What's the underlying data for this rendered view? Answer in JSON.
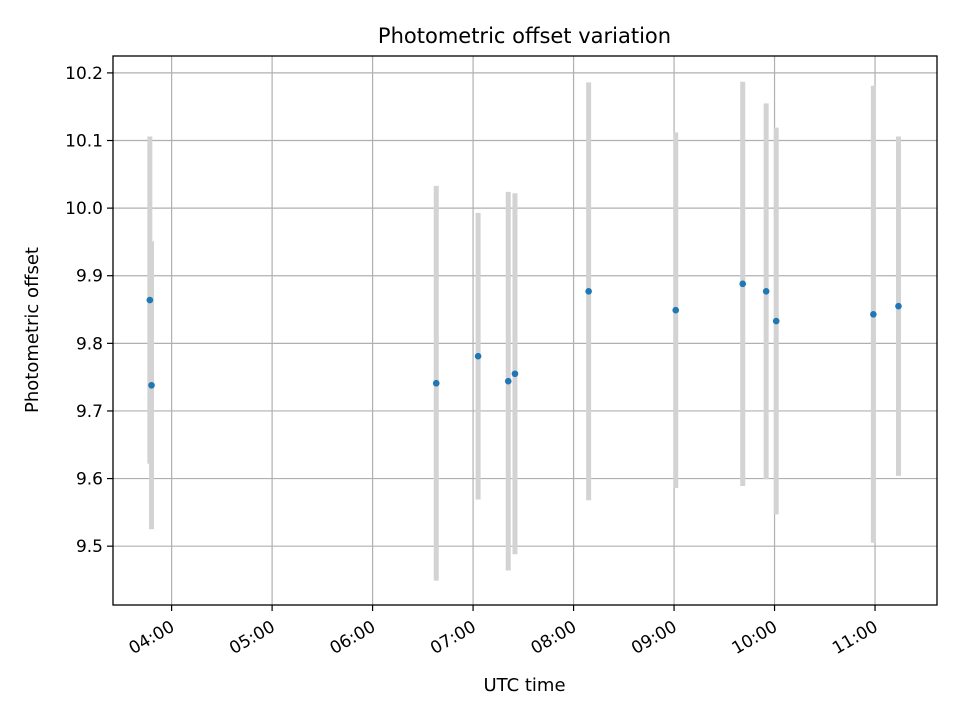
{
  "chart_data": {
    "type": "scatter",
    "title": "Photometric offset variation",
    "xlabel": "UTC time",
    "ylabel": "Photometric offset",
    "x_tick_labels": [
      "04:00",
      "05:00",
      "06:00",
      "07:00",
      "08:00",
      "09:00",
      "10:00",
      "11:00"
    ],
    "y_ticks": [
      9.5,
      9.6,
      9.7,
      9.8,
      9.9,
      10.0,
      10.1,
      10.2
    ],
    "y_tick_labels": [
      "9.5",
      "9.6",
      "9.7",
      "9.8",
      "9.9",
      "10.0",
      "10.1",
      "10.2"
    ],
    "xlim": [
      "03:25",
      "11:37"
    ],
    "ylim": [
      9.413,
      10.225
    ],
    "grid": true,
    "point_color": "#1f77b4",
    "errorbar_color": "#d3d3d3",
    "points": [
      {
        "time": "03:47",
        "y": 9.864,
        "err": 0.242
      },
      {
        "time": "03:48",
        "y": 9.738,
        "err": 0.213
      },
      {
        "time": "06:38",
        "y": 9.741,
        "err": 0.292
      },
      {
        "time": "07:03",
        "y": 9.781,
        "err": 0.212
      },
      {
        "time": "07:21",
        "y": 9.744,
        "err": 0.28
      },
      {
        "time": "07:25",
        "y": 9.755,
        "err": 0.267
      },
      {
        "time": "08:09",
        "y": 9.877,
        "err": 0.309
      },
      {
        "time": "09:01",
        "y": 9.849,
        "err": 0.263
      },
      {
        "time": "09:41",
        "y": 9.888,
        "err": 0.299
      },
      {
        "time": "09:55",
        "y": 9.877,
        "err": 0.278
      },
      {
        "time": "10:01",
        "y": 9.833,
        "err": 0.286
      },
      {
        "time": "10:59",
        "y": 9.843,
        "err": 0.338
      },
      {
        "time": "11:14",
        "y": 9.855,
        "err": 0.251
      }
    ]
  }
}
